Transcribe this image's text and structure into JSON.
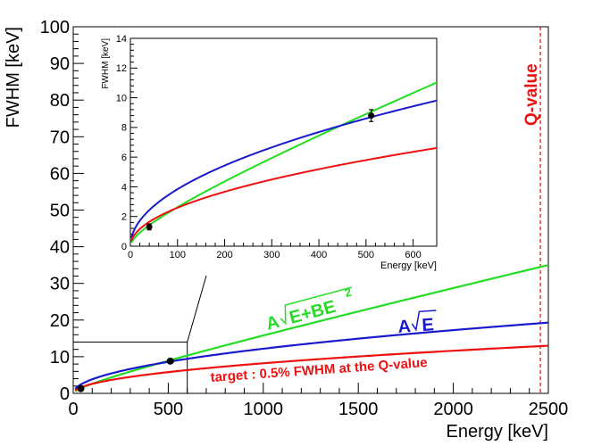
{
  "chart_data": [
    {
      "type": "line",
      "title": "",
      "xlabel": "Energy [keV]",
      "ylabel": "FWHM [keV]",
      "xlim": [
        0,
        2500
      ],
      "ylim": [
        0,
        100
      ],
      "xticks": [
        "0",
        "500",
        "1000",
        "1500",
        "2000",
        "2500"
      ],
      "yticks": [
        "0",
        "10",
        "20",
        "30",
        "40",
        "50",
        "60",
        "70",
        "80",
        "90",
        "100"
      ],
      "grid": false,
      "x": [
        10,
        50,
        100,
        250,
        500,
        1000,
        1500,
        2000,
        2500
      ],
      "series": [
        {
          "name": "A√E+BE²",
          "color": "#22dd22",
          "values": [
            0.65,
            1.9,
            3.0,
            5.3,
            8.9,
            15.6,
            22.1,
            28.6,
            35.0
          ]
        },
        {
          "name": "A√E",
          "color": "#1a1acc",
          "values": [
            1.22,
            2.7,
            3.9,
            6.1,
            8.6,
            12.2,
            14.9,
            17.3,
            19.3
          ]
        },
        {
          "name": "target : 0.5% FWHM at the Q-value",
          "color": "#ee1111",
          "values": [
            0.83,
            1.85,
            2.6,
            4.1,
            5.8,
            8.2,
            10.1,
            11.6,
            13.0
          ]
        }
      ],
      "points": [
        {
          "x": 40,
          "y": 1.3,
          "err": 0.2
        },
        {
          "x": 511,
          "y": 8.8,
          "err": 0.4
        }
      ],
      "annotations": {
        "q_value_label": "Q-value",
        "q_value_energy": 2458,
        "green_label": "A",
        "green_label_rad": "E+BE",
        "green_label_sup": "2",
        "blue_label": "A",
        "blue_label_rad": "E",
        "red_label": "target : 0.5% FWHM at the Q-value"
      }
    },
    {
      "type": "line",
      "title": "",
      "xlabel": "Energy [keV]",
      "ylabel": "FWHM [keV]",
      "xlim": [
        0,
        650
      ],
      "ylim": [
        0,
        14
      ],
      "xticks": [
        "0",
        "100",
        "200",
        "300",
        "400",
        "500",
        "600"
      ],
      "yticks": [
        "0",
        "2",
        "4",
        "6",
        "8",
        "10",
        "12",
        "14"
      ],
      "zoom_region_x": [
        0,
        600
      ],
      "zoom_region_y": [
        0,
        14
      ]
    }
  ]
}
